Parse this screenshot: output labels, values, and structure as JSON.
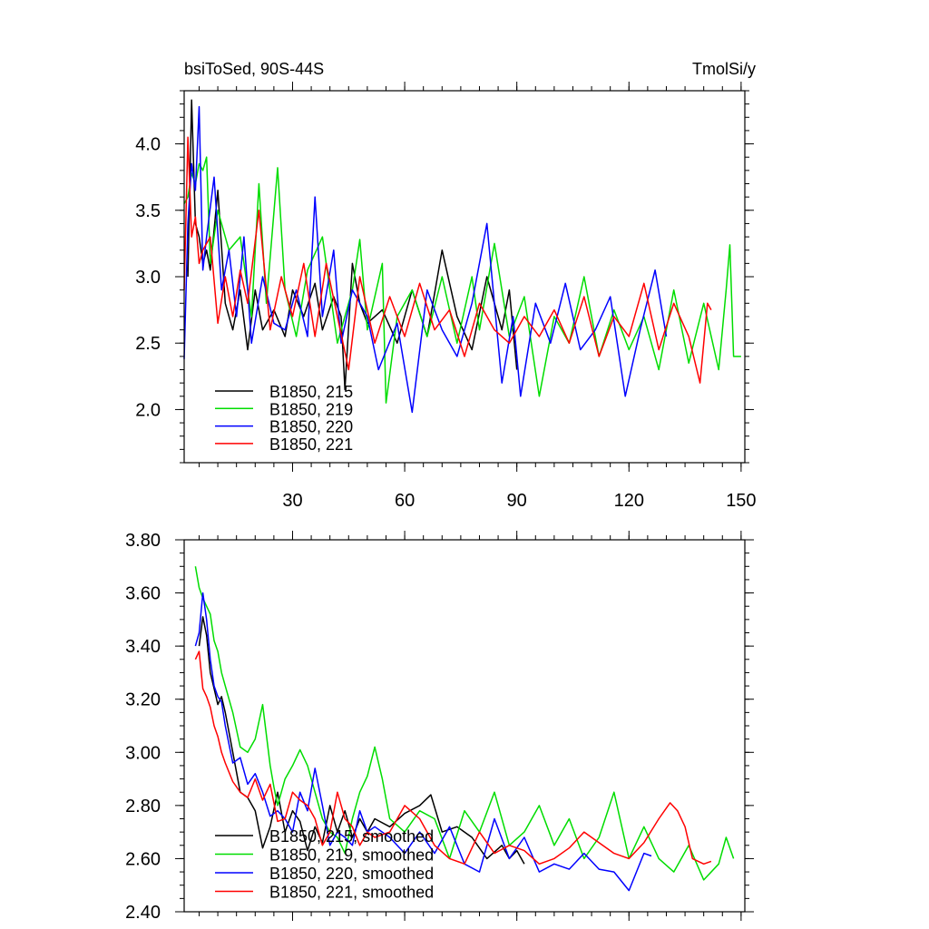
{
  "chart_data": [
    {
      "type": "line",
      "title_left": "bsiToSed, 90S-44S",
      "title_right": "TmolSi/y",
      "xlabel": "",
      "ylabel": "",
      "xlim": [
        1,
        151
      ],
      "ylim": [
        1.6,
        4.4
      ],
      "xticks": [
        30,
        60,
        90,
        120,
        150
      ],
      "xtick_labels": [
        "30",
        "60",
        "90",
        "120",
        "150"
      ],
      "yticks": [
        2.0,
        2.5,
        3.0,
        3.5,
        4.0
      ],
      "ytick_labels": [
        "2.0",
        "2.5",
        "3.0",
        "3.5",
        "4.0"
      ],
      "legend_position": "bottom-left",
      "series": [
        {
          "name": "B1850, 215",
          "color": "#000000",
          "x": [
            2,
            3,
            4,
            5,
            6,
            7,
            8,
            10,
            12,
            14,
            16,
            18,
            20,
            22,
            25,
            28,
            30,
            33,
            36,
            38,
            41,
            43,
            44,
            46,
            48,
            50,
            54,
            58,
            62,
            66,
            70,
            74,
            78,
            82,
            86,
            88,
            90
          ],
          "y": [
            3.0,
            4.33,
            3.4,
            3.3,
            3.1,
            3.2,
            3.05,
            3.65,
            2.8,
            2.6,
            2.9,
            2.45,
            2.9,
            2.6,
            2.75,
            2.55,
            2.9,
            2.7,
            2.95,
            2.6,
            2.85,
            2.7,
            2.15,
            3.1,
            2.8,
            2.65,
            2.75,
            2.5,
            2.9,
            2.55,
            3.2,
            2.7,
            2.45,
            3.0,
            2.6,
            2.9,
            2.3
          ]
        },
        {
          "name": "B1850, 219",
          "color": "#00dd00",
          "x": [
            1,
            2,
            3,
            4,
            5,
            6,
            7,
            8,
            10,
            13,
            16,
            19,
            21,
            23,
            26,
            28,
            31,
            34,
            38,
            42,
            46,
            48,
            50,
            54,
            55,
            58,
            62,
            66,
            70,
            74,
            78,
            80,
            84,
            88,
            92,
            96,
            100,
            104,
            108,
            112,
            116,
            120,
            124,
            128,
            132,
            136,
            140,
            144,
            146,
            147,
            148,
            150
          ],
          "y": [
            3.55,
            3.6,
            3.78,
            3.7,
            3.85,
            3.8,
            3.9,
            3.1,
            3.5,
            3.2,
            3.3,
            2.7,
            3.7,
            2.8,
            3.82,
            2.9,
            2.55,
            3.05,
            3.3,
            2.5,
            2.9,
            3.28,
            2.6,
            3.1,
            2.05,
            2.7,
            2.9,
            2.55,
            3.0,
            2.5,
            3.0,
            2.6,
            3.25,
            2.55,
            2.85,
            2.1,
            2.7,
            2.5,
            3.0,
            2.4,
            2.75,
            2.45,
            2.7,
            2.3,
            2.9,
            2.35,
            2.8,
            2.3,
            2.9,
            3.24,
            2.4,
            2.4
          ]
        },
        {
          "name": "B1850, 220",
          "color": "#0000ff",
          "x": [
            1,
            2,
            3,
            4,
            5,
            6,
            7,
            9,
            11,
            13,
            15,
            17,
            19,
            22,
            25,
            28,
            31,
            34,
            36,
            38,
            41,
            43,
            46,
            50,
            53,
            58,
            62,
            66,
            70,
            74,
            78,
            82,
            86,
            89,
            91,
            95,
            99,
            103,
            107,
            111,
            115,
            119,
            123,
            127,
            130
          ],
          "y": [
            2.38,
            3.4,
            3.85,
            3.65,
            4.28,
            3.05,
            3.3,
            3.75,
            2.9,
            3.2,
            2.7,
            3.3,
            2.5,
            3.0,
            2.65,
            2.6,
            2.9,
            2.55,
            3.6,
            2.7,
            3.2,
            2.5,
            2.9,
            2.7,
            2.3,
            2.65,
            1.98,
            2.9,
            2.6,
            2.4,
            2.8,
            3.4,
            2.2,
            2.7,
            2.1,
            2.8,
            2.5,
            2.95,
            2.45,
            2.6,
            2.85,
            2.1,
            2.6,
            3.05,
            2.55
          ]
        },
        {
          "name": "B1850, 221",
          "color": "#ff0000",
          "x": [
            1,
            2,
            3,
            4,
            5,
            6,
            7,
            8,
            10,
            12,
            14,
            16,
            18,
            21,
            24,
            27,
            30,
            33,
            36,
            39,
            42,
            45,
            48,
            52,
            56,
            60,
            64,
            68,
            72,
            76,
            80,
            84,
            88,
            92,
            96,
            100,
            104,
            108,
            112,
            116,
            120,
            124,
            128,
            132,
            136,
            139,
            140,
            141,
            142
          ],
          "y": [
            2.9,
            4.05,
            3.3,
            3.45,
            3.1,
            3.2,
            3.25,
            3.3,
            2.65,
            3.0,
            2.7,
            3.05,
            2.8,
            3.5,
            2.6,
            3.0,
            2.7,
            3.1,
            2.55,
            3.1,
            2.7,
            2.3,
            3.0,
            2.5,
            2.85,
            2.55,
            2.95,
            2.6,
            2.75,
            2.4,
            2.8,
            2.6,
            2.5,
            2.7,
            2.55,
            2.75,
            2.5,
            2.85,
            2.4,
            2.7,
            2.55,
            2.95,
            2.45,
            2.8,
            2.55,
            2.2,
            2.5,
            2.8,
            2.75
          ]
        }
      ]
    },
    {
      "type": "line",
      "xlabel": "",
      "ylabel": "",
      "xlim": [
        1,
        151
      ],
      "ylim": [
        2.4,
        3.8
      ],
      "xticks": [
        30,
        60,
        90,
        120,
        150
      ],
      "yticks": [
        2.4,
        2.6,
        2.8,
        3.0,
        3.2,
        3.4,
        3.6,
        3.8
      ],
      "ytick_labels": [
        "2.40",
        "2.60",
        "2.80",
        "3.00",
        "3.20",
        "3.40",
        "3.60",
        "3.80"
      ],
      "legend_position": "bottom-left",
      "series": [
        {
          "name": "B1850, 215, smoothed",
          "color": "#000000",
          "x": [
            5,
            6,
            7,
            8,
            9,
            10,
            11,
            12,
            14,
            16,
            18,
            20,
            22,
            24,
            26,
            28,
            30,
            32,
            34,
            36,
            38,
            40,
            42,
            44,
            46,
            48,
            50,
            52,
            56,
            60,
            64,
            67,
            70,
            74,
            78,
            82,
            86,
            88,
            90,
            92
          ],
          "y": [
            3.4,
            3.51,
            3.44,
            3.3,
            3.24,
            3.18,
            3.21,
            3.15,
            3.0,
            2.85,
            2.83,
            2.78,
            2.64,
            2.72,
            2.85,
            2.7,
            2.78,
            2.74,
            2.63,
            2.72,
            2.66,
            2.8,
            2.7,
            2.78,
            2.68,
            2.75,
            2.7,
            2.75,
            2.72,
            2.77,
            2.8,
            2.84,
            2.7,
            2.72,
            2.68,
            2.6,
            2.65,
            2.6,
            2.63,
            2.58
          ]
        },
        {
          "name": "B1850, 219, smoothed",
          "color": "#00dd00",
          "x": [
            4,
            5,
            6,
            7,
            8,
            9,
            10,
            11,
            12,
            14,
            16,
            18,
            20,
            22,
            24,
            25,
            26,
            28,
            30,
            32,
            34,
            36,
            38,
            40,
            42,
            44,
            46,
            48,
            50,
            52,
            54,
            56,
            60,
            64,
            68,
            72,
            76,
            80,
            84,
            88,
            92,
            96,
            100,
            104,
            108,
            112,
            116,
            120,
            124,
            128,
            132,
            136,
            140,
            144,
            146,
            148
          ],
          "y": [
            3.7,
            3.62,
            3.58,
            3.55,
            3.52,
            3.42,
            3.38,
            3.3,
            3.25,
            3.15,
            3.02,
            3.0,
            3.05,
            3.18,
            2.95,
            2.87,
            2.8,
            2.9,
            2.95,
            3.01,
            2.95,
            2.85,
            2.75,
            2.7,
            2.68,
            2.62,
            2.75,
            2.85,
            2.91,
            3.02,
            2.9,
            2.75,
            2.7,
            2.78,
            2.75,
            2.6,
            2.78,
            2.7,
            2.85,
            2.65,
            2.7,
            2.8,
            2.65,
            2.75,
            2.6,
            2.68,
            2.85,
            2.6,
            2.72,
            2.6,
            2.55,
            2.65,
            2.52,
            2.58,
            2.68,
            2.6
          ]
        },
        {
          "name": "B1850, 220, smoothed",
          "color": "#0000ff",
          "x": [
            4,
            5,
            6,
            7,
            8,
            9,
            10,
            11,
            12,
            14,
            16,
            18,
            20,
            22,
            24,
            26,
            28,
            30,
            32,
            34,
            36,
            38,
            40,
            42,
            44,
            46,
            48,
            50,
            52,
            56,
            60,
            64,
            68,
            72,
            76,
            80,
            84,
            88,
            92,
            96,
            100,
            104,
            108,
            112,
            116,
            120,
            124,
            126
          ],
          "y": [
            3.4,
            3.45,
            3.6,
            3.5,
            3.35,
            3.25,
            3.21,
            3.19,
            3.1,
            2.96,
            2.98,
            2.88,
            2.92,
            2.85,
            2.76,
            2.78,
            2.75,
            2.7,
            2.85,
            2.78,
            2.94,
            2.8,
            2.65,
            2.7,
            2.68,
            2.65,
            2.78,
            2.7,
            2.72,
            2.68,
            2.62,
            2.7,
            2.62,
            2.72,
            2.58,
            2.55,
            2.75,
            2.6,
            2.68,
            2.55,
            2.58,
            2.56,
            2.62,
            2.56,
            2.55,
            2.48,
            2.62,
            2.61
          ]
        },
        {
          "name": "B1850, 221, smoothed",
          "color": "#ff0000",
          "x": [
            4,
            5,
            6,
            7,
            8,
            9,
            10,
            11,
            12,
            14,
            16,
            18,
            20,
            22,
            24,
            26,
            28,
            30,
            32,
            34,
            36,
            38,
            40,
            42,
            44,
            46,
            48,
            50,
            52,
            56,
            60,
            64,
            68,
            72,
            76,
            80,
            84,
            88,
            92,
            96,
            100,
            104,
            108,
            112,
            116,
            120,
            124,
            128,
            131,
            133,
            135,
            137,
            140,
            142
          ],
          "y": [
            3.35,
            3.38,
            3.24,
            3.21,
            3.17,
            3.1,
            3.06,
            3.0,
            2.96,
            2.89,
            2.85,
            2.83,
            2.9,
            2.82,
            2.88,
            2.74,
            2.75,
            2.85,
            2.82,
            2.8,
            2.75,
            2.65,
            2.7,
            2.85,
            2.75,
            2.72,
            2.65,
            2.7,
            2.68,
            2.7,
            2.8,
            2.75,
            2.65,
            2.6,
            2.58,
            2.7,
            2.62,
            2.65,
            2.63,
            2.58,
            2.6,
            2.64,
            2.7,
            2.66,
            2.62,
            2.6,
            2.66,
            2.75,
            2.81,
            2.78,
            2.72,
            2.6,
            2.58,
            2.59
          ]
        }
      ]
    }
  ]
}
